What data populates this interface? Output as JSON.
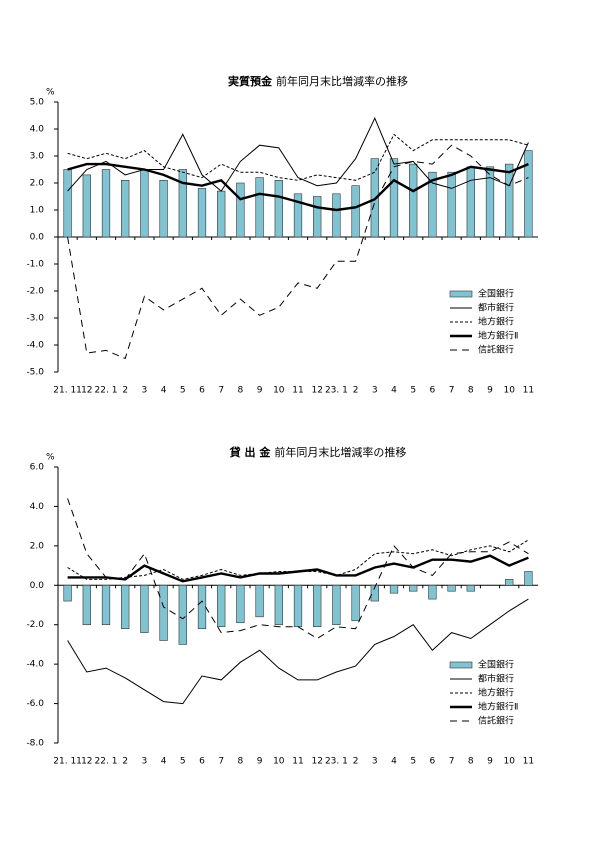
{
  "chart_data": [
    {
      "type": "bar-line",
      "title": "実質預金",
      "subtitle": "前年同月末比増減率の推移",
      "y_unit": "%",
      "categories": [
        "21. 11",
        "12",
        "22. 1",
        "2",
        "3",
        "4",
        "5",
        "6",
        "7",
        "8",
        "9",
        "10",
        "11",
        "12",
        "23. 1",
        "2",
        "3",
        "4",
        "5",
        "6",
        "7",
        "8",
        "9",
        "10",
        "11"
      ],
      "ylim": [
        -5,
        5
      ],
      "yticks": [
        {
          "value": 5,
          "label": "5.0"
        },
        {
          "value": 4,
          "label": "4.0"
        },
        {
          "value": 3,
          "label": "3.0"
        },
        {
          "value": 2,
          "label": "2.0"
        },
        {
          "value": 1,
          "label": "1.0"
        },
        {
          "value": 0,
          "label": "0.0"
        },
        {
          "value": -1,
          "label": "-1.0"
        },
        {
          "value": -2,
          "label": "-2.0"
        },
        {
          "value": -3,
          "label": "-3.0"
        },
        {
          "value": -4,
          "label": "-4.0"
        },
        {
          "value": -5,
          "label": "-5.0"
        }
      ],
      "legend": "lower-right",
      "series": [
        {
          "name": "全国銀行",
          "kind": "bar",
          "color": "#80c4d4",
          "values": [
            2.5,
            2.3,
            2.5,
            2.1,
            2.5,
            2.1,
            2.5,
            1.8,
            1.7,
            2.0,
            2.2,
            2.1,
            1.6,
            1.5,
            1.6,
            1.9,
            2.9,
            2.9,
            2.7,
            2.4,
            2.4,
            2.6,
            2.6,
            2.7,
            3.2
          ]
        },
        {
          "name": "都市銀行",
          "kind": "line",
          "color": "#000000",
          "dash": "solid",
          "values": [
            1.7,
            2.5,
            2.8,
            2.3,
            2.5,
            2.5,
            3.8,
            2.3,
            1.7,
            2.8,
            3.4,
            3.3,
            2.2,
            1.9,
            2.0,
            2.9,
            4.4,
            2.7,
            2.8,
            2.0,
            1.8,
            2.1,
            2.2,
            1.9,
            3.5
          ]
        },
        {
          "name": "地方銀行",
          "kind": "line",
          "color": "#000000",
          "dash": "dotted",
          "values": [
            3.1,
            2.9,
            3.1,
            2.9,
            3.2,
            2.6,
            2.4,
            2.2,
            2.7,
            2.4,
            2.4,
            2.2,
            2.1,
            2.3,
            2.2,
            2.1,
            2.4,
            3.8,
            3.2,
            3.6,
            3.6,
            3.6,
            3.6,
            3.6,
            3.4
          ]
        },
        {
          "name": "地方銀行Ⅱ",
          "kind": "line",
          "color": "#000000",
          "dash": "thick",
          "values": [
            2.5,
            2.7,
            2.7,
            2.6,
            2.5,
            2.3,
            2.0,
            1.9,
            2.1,
            1.4,
            1.6,
            1.5,
            1.3,
            1.1,
            1.0,
            1.1,
            1.4,
            2.1,
            1.7,
            2.1,
            2.3,
            2.6,
            2.5,
            2.4,
            2.7
          ]
        },
        {
          "name": "信託銀行",
          "kind": "line",
          "color": "#000000",
          "dash": "dashed",
          "values": [
            0.0,
            -4.3,
            -4.2,
            -4.5,
            -2.2,
            -2.7,
            -2.3,
            -1.9,
            -2.9,
            -2.3,
            -2.9,
            -2.6,
            -1.7,
            -1.9,
            -0.9,
            -0.9,
            1.3,
            2.6,
            2.8,
            2.7,
            3.4,
            3.0,
            2.3,
            1.9,
            2.2
          ]
        }
      ]
    },
    {
      "type": "bar-line",
      "title": "貸 出 金",
      "subtitle": "前年同月末比増減率の推移",
      "y_unit": "%",
      "categories": [
        "21. 11",
        "12",
        "22. 1",
        "2",
        "3",
        "4",
        "5",
        "6",
        "7",
        "8",
        "9",
        "10",
        "11",
        "12",
        "23. 1",
        "2",
        "3",
        "4",
        "5",
        "6",
        "7",
        "8",
        "9",
        "10",
        "11"
      ],
      "ylim": [
        -8,
        6
      ],
      "yticks": [
        {
          "value": 6,
          "label": "6.0"
        },
        {
          "value": 4,
          "label": "4.0"
        },
        {
          "value": 2,
          "label": "2.0"
        },
        {
          "value": 0,
          "label": "0.0"
        },
        {
          "value": -2,
          "label": "-2.0"
        },
        {
          "value": -4,
          "label": "-4.0"
        },
        {
          "value": -6,
          "label": "-6.0"
        },
        {
          "value": -8,
          "label": "-8.0"
        }
      ],
      "legend": "lower-right",
      "series": [
        {
          "name": "全国銀行",
          "kind": "bar",
          "color": "#80c4d4",
          "values": [
            -0.8,
            -2.0,
            -2.0,
            -2.2,
            -2.4,
            -2.8,
            -3.0,
            -2.2,
            -2.1,
            -1.9,
            -1.6,
            -2.0,
            -2.1,
            -2.1,
            -2.0,
            -1.8,
            -0.8,
            -0.4,
            -0.3,
            -0.7,
            -0.3,
            -0.3,
            0.0,
            0.3,
            0.7
          ]
        },
        {
          "name": "都市銀行",
          "kind": "line",
          "color": "#000000",
          "dash": "solid",
          "values": [
            -2.8,
            -4.4,
            -4.2,
            -4.7,
            -5.3,
            -5.9,
            -6.0,
            -4.6,
            -4.8,
            -3.9,
            -3.3,
            -4.2,
            -4.8,
            -4.8,
            -4.4,
            -4.1,
            -3.0,
            -2.6,
            -2.0,
            -3.3,
            -2.4,
            -2.7,
            -2.0,
            -1.3,
            -0.7
          ]
        },
        {
          "name": "地方銀行",
          "kind": "line",
          "color": "#000000",
          "dash": "dotted",
          "values": [
            0.9,
            0.3,
            0.3,
            0.4,
            0.5,
            0.8,
            0.3,
            0.5,
            0.8,
            0.5,
            0.6,
            0.7,
            0.7,
            0.7,
            0.5,
            0.8,
            1.6,
            1.7,
            1.6,
            1.8,
            1.5,
            1.8,
            2.0,
            1.7,
            2.3
          ]
        },
        {
          "name": "地方銀行Ⅱ",
          "kind": "line",
          "color": "#000000",
          "dash": "thick",
          "values": [
            0.4,
            0.4,
            0.4,
            0.3,
            1.0,
            0.6,
            0.2,
            0.4,
            0.6,
            0.4,
            0.6,
            0.6,
            0.7,
            0.8,
            0.5,
            0.5,
            0.9,
            1.1,
            0.9,
            1.3,
            1.3,
            1.2,
            1.5,
            1.0,
            1.4
          ]
        },
        {
          "name": "信託銀行",
          "kind": "line",
          "color": "#000000",
          "dash": "dashed",
          "values": [
            4.4,
            1.6,
            0.4,
            0.3,
            1.6,
            -1.1,
            -1.7,
            -0.8,
            -2.4,
            -2.3,
            -2.0,
            -2.1,
            -2.1,
            -2.7,
            -2.1,
            -2.2,
            -0.1,
            2.0,
            0.9,
            0.5,
            1.6,
            1.7,
            1.7,
            2.2,
            1.6
          ]
        }
      ]
    }
  ]
}
